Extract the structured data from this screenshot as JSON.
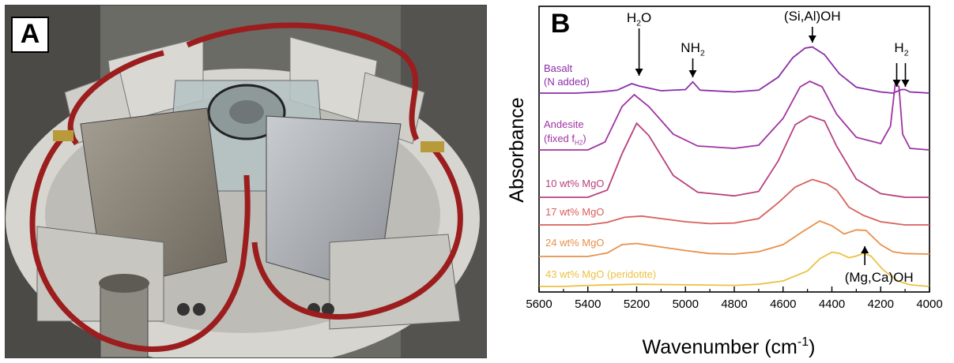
{
  "panel_labels": {
    "a": "A",
    "b": "B"
  },
  "chart_data": {
    "type": "line",
    "xlabel": "Wavenumber (cm",
    "xlabel_sup": "-1",
    "xlabel_end": ")",
    "ylabel": "Absorbance",
    "xlim": [
      5600,
      4000
    ],
    "x_reversed": true,
    "grid": false,
    "xticks": [
      "5600",
      "5400",
      "5200",
      "5000",
      "4800",
      "4600",
      "4400",
      "4200",
      "4000"
    ],
    "series": [
      {
        "name": "Basalt",
        "name2": "(N added)",
        "color": "#8a2ea8",
        "points": [
          [
            5600,
            0.0
          ],
          [
            5450,
            0.0
          ],
          [
            5350,
            0.02
          ],
          [
            5280,
            0.05
          ],
          [
            5220,
            0.16
          ],
          [
            5190,
            0.12
          ],
          [
            5100,
            0.04
          ],
          [
            5000,
            0.06
          ],
          [
            4970,
            0.19
          ],
          [
            4940,
            0.05
          ],
          [
            4800,
            0.02
          ],
          [
            4700,
            0.05
          ],
          [
            4620,
            0.27
          ],
          [
            4560,
            0.6
          ],
          [
            4510,
            0.76
          ],
          [
            4480,
            0.78
          ],
          [
            4430,
            0.65
          ],
          [
            4370,
            0.33
          ],
          [
            4300,
            0.1
          ],
          [
            4200,
            0.02
          ],
          [
            4150,
            0.0
          ],
          [
            4115,
            0.06
          ],
          [
            4100,
            0.06
          ],
          [
            4080,
            0.02
          ],
          [
            4000,
            0.0
          ]
        ]
      },
      {
        "name": "Andesite",
        "name2": "(fixed f",
        "name2_sub": "H2",
        "name2_end": ")",
        "color": "#a033a3",
        "points": [
          [
            5600,
            0.0
          ],
          [
            5400,
            0.0
          ],
          [
            5330,
            0.1
          ],
          [
            5260,
            0.55
          ],
          [
            5210,
            0.7
          ],
          [
            5150,
            0.55
          ],
          [
            5050,
            0.2
          ],
          [
            4950,
            0.05
          ],
          [
            4800,
            0.02
          ],
          [
            4700,
            0.06
          ],
          [
            4600,
            0.4
          ],
          [
            4530,
            0.8
          ],
          [
            4490,
            0.87
          ],
          [
            4440,
            0.8
          ],
          [
            4380,
            0.45
          ],
          [
            4300,
            0.16
          ],
          [
            4200,
            0.08
          ],
          [
            4160,
            0.3
          ],
          [
            4140,
            0.85
          ],
          [
            4125,
            0.8
          ],
          [
            4110,
            0.2
          ],
          [
            4080,
            0.02
          ],
          [
            4000,
            0.0
          ]
        ]
      },
      {
        "name": "10 wt% MgO",
        "color": "#b7407e",
        "points": [
          [
            5600,
            0.0
          ],
          [
            5400,
            0.0
          ],
          [
            5320,
            0.1
          ],
          [
            5260,
            0.6
          ],
          [
            5200,
            1.02
          ],
          [
            5150,
            0.85
          ],
          [
            5050,
            0.3
          ],
          [
            4950,
            0.07
          ],
          [
            4800,
            0.02
          ],
          [
            4700,
            0.08
          ],
          [
            4620,
            0.5
          ],
          [
            4550,
            1.0
          ],
          [
            4490,
            1.12
          ],
          [
            4430,
            1.05
          ],
          [
            4380,
            0.7
          ],
          [
            4300,
            0.25
          ],
          [
            4200,
            0.05
          ],
          [
            4100,
            0.0
          ],
          [
            4000,
            0.0
          ]
        ]
      },
      {
        "name": "17 wt% MgO",
        "color": "#d8605c",
        "points": [
          [
            5600,
            0.0
          ],
          [
            5400,
            0.0
          ],
          [
            5320,
            0.04
          ],
          [
            5250,
            0.12
          ],
          [
            5180,
            0.14
          ],
          [
            5100,
            0.1
          ],
          [
            5000,
            0.05
          ],
          [
            4900,
            0.02
          ],
          [
            4800,
            0.03
          ],
          [
            4700,
            0.1
          ],
          [
            4620,
            0.35
          ],
          [
            4550,
            0.6
          ],
          [
            4480,
            0.72
          ],
          [
            4420,
            0.65
          ],
          [
            4380,
            0.55
          ],
          [
            4330,
            0.28
          ],
          [
            4270,
            0.15
          ],
          [
            4200,
            0.05
          ],
          [
            4100,
            0.0
          ],
          [
            4000,
            0.0
          ]
        ]
      },
      {
        "name": "24 wt% MgO",
        "color": "#e8904a",
        "points": [
          [
            5600,
            0.0
          ],
          [
            5400,
            0.0
          ],
          [
            5320,
            0.06
          ],
          [
            5260,
            0.2
          ],
          [
            5200,
            0.22
          ],
          [
            5100,
            0.16
          ],
          [
            5000,
            0.1
          ],
          [
            4900,
            0.05
          ],
          [
            4800,
            0.04
          ],
          [
            4700,
            0.08
          ],
          [
            4600,
            0.2
          ],
          [
            4520,
            0.42
          ],
          [
            4450,
            0.6
          ],
          [
            4400,
            0.52
          ],
          [
            4350,
            0.38
          ],
          [
            4300,
            0.45
          ],
          [
            4260,
            0.44
          ],
          [
            4200,
            0.2
          ],
          [
            4150,
            0.08
          ],
          [
            4100,
            0.05
          ],
          [
            4000,
            0.04
          ]
        ]
      },
      {
        "name": "43 wt% MgO (peridotite)",
        "color": "#ecc143",
        "points": [
          [
            5600,
            0.0
          ],
          [
            5500,
            0.0
          ],
          [
            5400,
            0.02
          ],
          [
            5200,
            0.04
          ],
          [
            5000,
            0.03
          ],
          [
            4800,
            0.02
          ],
          [
            4700,
            0.04
          ],
          [
            4600,
            0.1
          ],
          [
            4500,
            0.28
          ],
          [
            4450,
            0.5
          ],
          [
            4400,
            0.62
          ],
          [
            4370,
            0.6
          ],
          [
            4330,
            0.52
          ],
          [
            4300,
            0.55
          ],
          [
            4270,
            0.6
          ],
          [
            4240,
            0.55
          ],
          [
            4190,
            0.3
          ],
          [
            4130,
            0.1
          ],
          [
            4080,
            0.03
          ],
          [
            4000,
            0.0
          ]
        ]
      }
    ],
    "annotations": [
      {
        "text": "H",
        "sub": "2",
        "text_end": "O",
        "x": 5190,
        "arrow": "down"
      },
      {
        "text": "NH",
        "sub": "2",
        "text_end": "",
        "x": 4970,
        "arrow": "down"
      },
      {
        "text": "(Si,Al)OH",
        "sub": "",
        "text_end": "",
        "x": 4480,
        "arrow": "down"
      },
      {
        "text": "H",
        "sub": "2",
        "text_end": "",
        "x": 4115,
        "arrow": "double-down"
      },
      {
        "text": "(Mg,Ca)OH",
        "sub": "",
        "text_end": "",
        "x": 4265,
        "arrow": "up"
      }
    ]
  }
}
